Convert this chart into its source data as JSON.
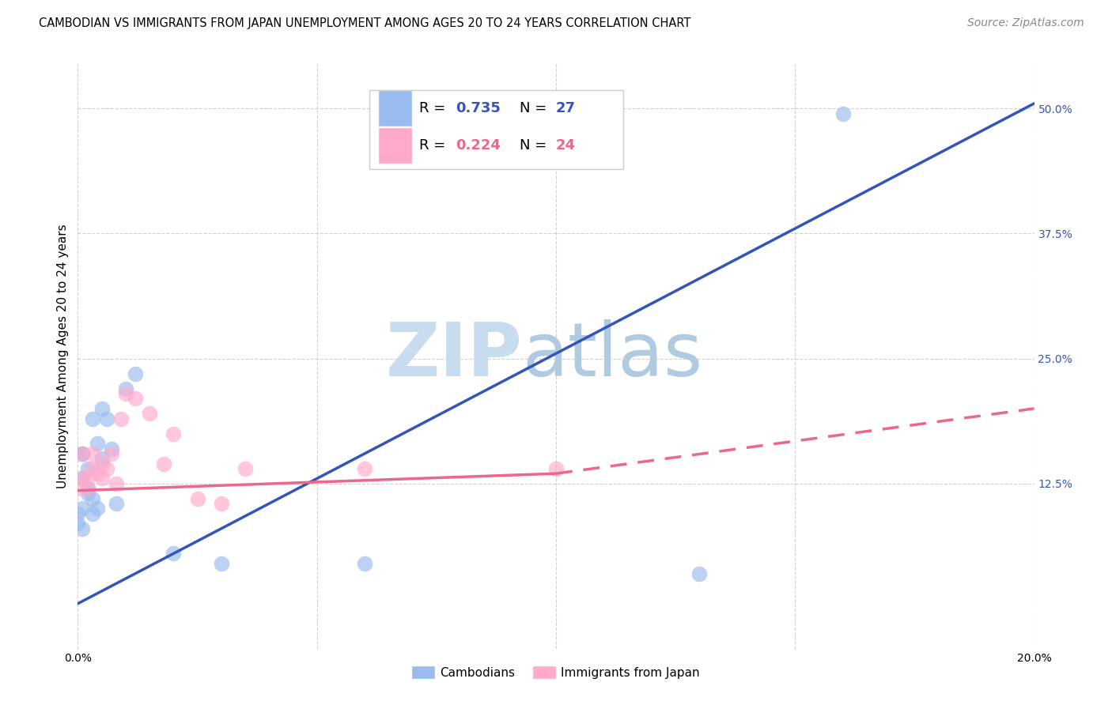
{
  "title": "CAMBODIAN VS IMMIGRANTS FROM JAPAN UNEMPLOYMENT AMONG AGES 20 TO 24 YEARS CORRELATION CHART",
  "source": "Source: ZipAtlas.com",
  "ylabel": "Unemployment Among Ages 20 to 24 years",
  "xlim": [
    0.0,
    0.2
  ],
  "ylim": [
    -0.04,
    0.545
  ],
  "legend_blue_r": "0.735",
  "legend_blue_n": "27",
  "legend_pink_r": "0.224",
  "legend_pink_n": "24",
  "blue_scatter_color": "#99BBEE",
  "pink_scatter_color": "#FFAACC",
  "blue_line_color": "#3355BB",
  "pink_line_color": "#EE6688",
  "grid_color": "#CCCCCC",
  "background_color": "#FFFFFF",
  "title_fontsize": 10.5,
  "axis_label_fontsize": 11,
  "tick_fontsize": 10,
  "source_fontsize": 10,
  "cam_x": [
    0.0,
    0.0,
    0.001,
    0.001,
    0.001,
    0.001,
    0.001,
    0.002,
    0.002,
    0.002,
    0.003,
    0.003,
    0.003,
    0.004,
    0.004,
    0.005,
    0.005,
    0.006,
    0.007,
    0.008,
    0.01,
    0.012,
    0.02,
    0.03,
    0.06,
    0.13,
    0.16
  ],
  "cam_y": [
    0.095,
    0.085,
    0.1,
    0.13,
    0.155,
    0.155,
    0.08,
    0.115,
    0.12,
    0.14,
    0.11,
    0.19,
    0.095,
    0.165,
    0.1,
    0.15,
    0.2,
    0.19,
    0.16,
    0.105,
    0.22,
    0.235,
    0.055,
    0.045,
    0.045,
    0.035,
    0.495
  ],
  "jpn_x": [
    0.0,
    0.001,
    0.001,
    0.002,
    0.002,
    0.003,
    0.003,
    0.004,
    0.005,
    0.005,
    0.006,
    0.007,
    0.008,
    0.009,
    0.01,
    0.012,
    0.015,
    0.018,
    0.02,
    0.025,
    0.03,
    0.035,
    0.06,
    0.1
  ],
  "jpn_y": [
    0.12,
    0.13,
    0.155,
    0.13,
    0.12,
    0.155,
    0.14,
    0.135,
    0.145,
    0.13,
    0.14,
    0.155,
    0.125,
    0.19,
    0.215,
    0.21,
    0.195,
    0.145,
    0.175,
    0.11,
    0.105,
    0.14,
    0.14,
    0.14
  ],
  "blue_line_x0": 0.0,
  "blue_line_y0": 0.005,
  "blue_line_x1": 0.2,
  "blue_line_y1": 0.505,
  "pink_line_solid_x0": 0.0,
  "pink_line_solid_y0": 0.118,
  "pink_line_solid_x1": 0.1,
  "pink_line_solid_y1": 0.135,
  "pink_line_dash_x0": 0.1,
  "pink_line_dash_y0": 0.135,
  "pink_line_dash_x1": 0.2,
  "pink_line_dash_y1": 0.2,
  "yticks": [
    0.125,
    0.25,
    0.375,
    0.5
  ],
  "ytick_labels": [
    "12.5%",
    "25.0%",
    "37.5%",
    "50.0%"
  ],
  "xticks": [
    0.0,
    0.05,
    0.1,
    0.15,
    0.2
  ],
  "xtick_labels": [
    "0.0%",
    "",
    "",
    "",
    "20.0%"
  ]
}
